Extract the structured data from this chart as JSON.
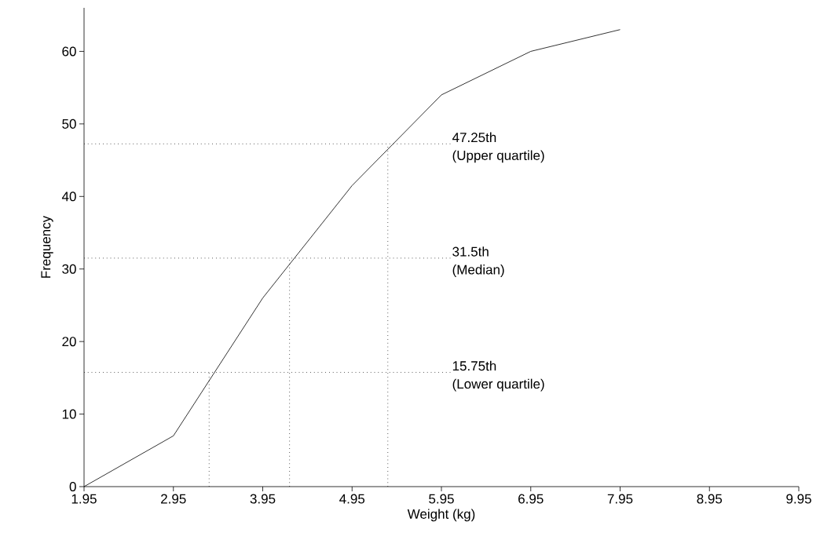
{
  "chart_data": {
    "type": "line",
    "xlabel": "Weight (kg)",
    "ylabel": "Frequency",
    "x": [
      1.95,
      2.95,
      3.95,
      4.95,
      5.95,
      6.95,
      7.95
    ],
    "series": [
      {
        "color": "#000000",
        "values": [
          0,
          7,
          26,
          41.5,
          54,
          60,
          63
        ]
      }
    ],
    "xlim": [
      1.95,
      9.95
    ],
    "xticks": [
      {
        "value": 1.95,
        "label": "1.95"
      },
      {
        "value": 2.95,
        "label": "2.95"
      },
      {
        "value": 3.95,
        "label": "3.95"
      },
      {
        "value": 4.95,
        "label": "4.95"
      },
      {
        "value": 5.95,
        "label": "5.95"
      },
      {
        "value": 6.95,
        "label": "6.95"
      },
      {
        "value": 7.95,
        "label": "7.95"
      },
      {
        "value": 8.95,
        "label": "8.95"
      },
      {
        "value": 9.95,
        "label": "9.95"
      }
    ],
    "ylim": [
      0,
      66
    ],
    "yticks": [
      0,
      10,
      20,
      30,
      40,
      50,
      60
    ],
    "ref_lines": [
      {
        "axis": "y",
        "value": 15.75,
        "label": "15.75th",
        "line_style": "dotted"
      },
      {
        "axis": "y",
        "value": 31.5,
        "label": "31.5th",
        "line_style": "dotted"
      },
      {
        "axis": "y",
        "value": 47.25,
        "label": "47.25th",
        "line_style": "dotted"
      },
      {
        "axis": "x",
        "value": 3.35,
        "line_style": "dotted"
      },
      {
        "axis": "x",
        "value": 4.25,
        "line_style": "dotted"
      },
      {
        "axis": "x",
        "value": 5.35,
        "line_style": "dotted"
      }
    ],
    "annotations": [
      "(Lower quartile)",
      "(Median)",
      "(Upper quartile)"
    ],
    "grid": false,
    "marker": "none",
    "line_style": "solid"
  }
}
